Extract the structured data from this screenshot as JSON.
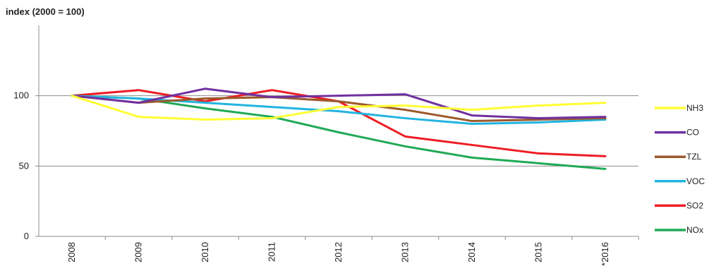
{
  "chart_data": {
    "type": "line",
    "ylabel": "index (2000 = 100)",
    "x": [
      "2008",
      "2009",
      "2010",
      "2011",
      "2012",
      "2013",
      "2014",
      "2015",
      "*2016"
    ],
    "ylim": [
      0,
      150
    ],
    "yticks": [
      0,
      50,
      100
    ],
    "grid": "horizontal lines at 50 and 100",
    "legend": "right",
    "series": [
      {
        "name": "NH3",
        "color": "#ffff33",
        "values": [
          100,
          85,
          83,
          84,
          92,
          93,
          90,
          93,
          95
        ]
      },
      {
        "name": "CO",
        "color": "#7030a0",
        "values": [
          100,
          95,
          105,
          99,
          100,
          101,
          86,
          84,
          85
        ]
      },
      {
        "name": "TZL",
        "color": "#9c5a2c",
        "values": [
          100,
          95,
          98,
          99,
          96,
          90,
          82,
          83,
          84
        ]
      },
      {
        "name": "VOC",
        "color": "#22b4e0",
        "values": [
          100,
          98,
          95,
          92,
          89,
          84,
          80,
          81,
          83
        ]
      },
      {
        "name": "SO2",
        "color": "#ee1c25",
        "values": [
          100,
          104,
          96,
          104,
          96,
          71,
          65,
          59,
          57
        ]
      },
      {
        "name": "NOx",
        "color": "#1fa955",
        "values": [
          100,
          98,
          91,
          85,
          74,
          64,
          56,
          52,
          48
        ]
      }
    ]
  }
}
